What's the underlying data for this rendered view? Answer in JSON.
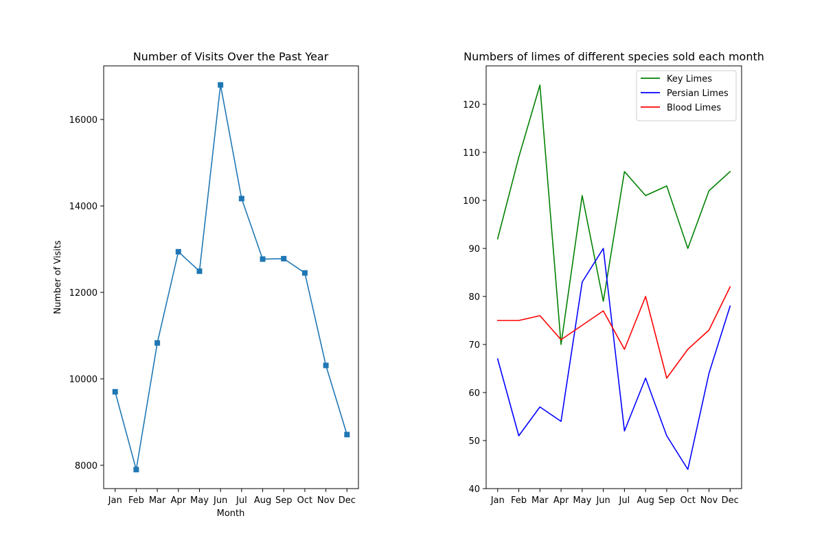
{
  "chart_data": [
    {
      "type": "line",
      "title": "Number of Visits Over the Past Year",
      "xlabel": "Month",
      "ylabel": "Number of Visits",
      "categories": [
        "Jan",
        "Feb",
        "Mar",
        "Apr",
        "May",
        "Jun",
        "Jul",
        "Aug",
        "Sep",
        "Oct",
        "Nov",
        "Dec"
      ],
      "series": [
        {
          "values": [
            9700,
            7900,
            10830,
            12940,
            12490,
            16800,
            14170,
            12770,
            12780,
            12450,
            10310,
            8710
          ],
          "color": "#1f77b4",
          "marker": "square"
        }
      ],
      "ylim": [
        7460,
        17240
      ],
      "yticks": [
        8000,
        10000,
        12000,
        14000,
        16000
      ],
      "ytick_labels": [
        "8000",
        "10000",
        "12000",
        "14000",
        "16000"
      ],
      "grid": false,
      "legend": null
    },
    {
      "type": "line",
      "title": "Numbers of limes of different species sold each month",
      "xlabel": "",
      "ylabel": "",
      "categories": [
        "Jan",
        "Feb",
        "Mar",
        "Apr",
        "May",
        "Jun",
        "Jul",
        "Aug",
        "Sep",
        "Oct",
        "Nov",
        "Dec"
      ],
      "series": [
        {
          "name": "Key Limes",
          "values": [
            92,
            109,
            124,
            70,
            101,
            79,
            106,
            101,
            103,
            90,
            102,
            106
          ],
          "color": "#008000"
        },
        {
          "name": "Persian Limes",
          "values": [
            67,
            51,
            57,
            54,
            83,
            90,
            52,
            63,
            51,
            44,
            64,
            78
          ],
          "color": "#0000ff"
        },
        {
          "name": "Blood Limes",
          "values": [
            75,
            75,
            76,
            71,
            74,
            77,
            69,
            80,
            63,
            69,
            73,
            82
          ],
          "color": "#ff0000"
        }
      ],
      "ylim": [
        40,
        128
      ],
      "yticks": [
        40,
        50,
        60,
        70,
        80,
        90,
        100,
        110,
        120
      ],
      "ytick_labels": [
        "40",
        "50",
        "60",
        "70",
        "80",
        "90",
        "100",
        "110",
        "120"
      ],
      "grid": false,
      "legend": "top-right"
    }
  ]
}
